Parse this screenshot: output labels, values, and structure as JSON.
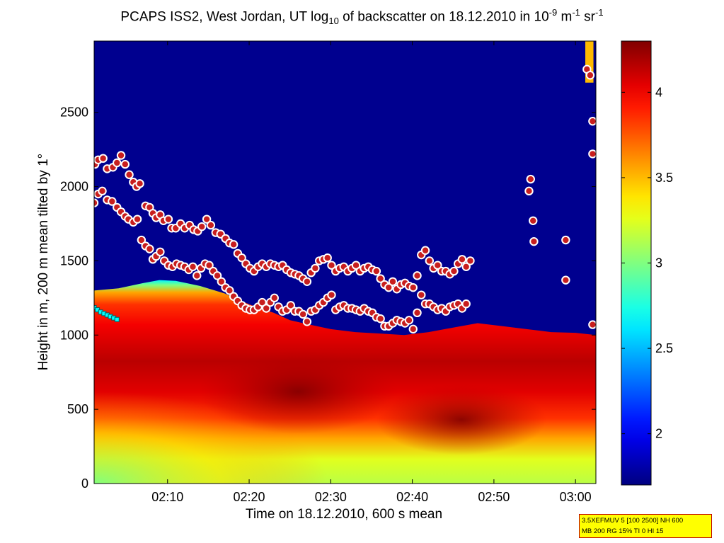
{
  "title": {
    "prefix": "PCAPS ISS2, West Jordan, UT log",
    "sub": "10",
    "middle": " of backscatter on 18.12.2010 in 10",
    "exp1": "-9",
    "unit1": " m",
    "exp2": "-1",
    "unit2": " sr",
    "exp3": "-1"
  },
  "info_box": {
    "line1": "3.5XEFMUV 5 [100 2500] NH 600",
    "line2": "MB 200 RG 15% TI 0 HI 15"
  },
  "colors": {
    "background": "#00008f",
    "marker_fill": "#c81e1e",
    "marker_edge": "#ffffff",
    "cyan_marker": "#00ffff"
  },
  "chart_data": {
    "type": "heatmap",
    "title": "PCAPS ISS2, West Jordan, UT log10 of backscatter on 18.12.2010 in 10-9 m-1 sr-1",
    "xlabel": "Time on 18.12.2010, 600 s mean",
    "ylabel": "Height in m, 200 m mean tilted by 1°",
    "xlim_min": [
      121,
      182.5
    ],
    "ylim": [
      0,
      2980
    ],
    "x_ticks": [
      {
        "v": 130,
        "label": "02:10"
      },
      {
        "v": 140,
        "label": "02:20"
      },
      {
        "v": 150,
        "label": "02:30"
      },
      {
        "v": 160,
        "label": "02:40"
      },
      {
        "v": 170,
        "label": "02:50"
      },
      {
        "v": 180,
        "label": "03:00"
      }
    ],
    "y_ticks": [
      0,
      500,
      1000,
      1500,
      2000,
      2500
    ],
    "colorbar": {
      "lim": [
        1.7,
        4.3
      ],
      "ticks": [
        2,
        2.5,
        3,
        3.5,
        4
      ],
      "colormap": "jet"
    },
    "aerosol_top_m": [
      [
        121,
        1300
      ],
      [
        124,
        1315
      ],
      [
        127,
        1350
      ],
      [
        129,
        1370
      ],
      [
        131,
        1365
      ],
      [
        134,
        1330
      ],
      [
        137,
        1280
      ],
      [
        139,
        1230
      ],
      [
        141,
        1185
      ],
      [
        143,
        1150
      ],
      [
        145,
        1100
      ],
      [
        147,
        1075
      ],
      [
        150,
        1040
      ],
      [
        153,
        1020
      ],
      [
        156,
        1010
      ],
      [
        159,
        1000
      ],
      [
        162,
        1020
      ],
      [
        165,
        1050
      ],
      [
        168,
        1080
      ],
      [
        171,
        1060
      ],
      [
        174,
        1040
      ],
      [
        177,
        1020
      ],
      [
        180,
        1015
      ],
      [
        182.5,
        1000
      ]
    ],
    "layer_series": [
      {
        "points": [
          [
            121.1,
            2150
          ],
          [
            121.5,
            2180
          ],
          [
            122.1,
            2190
          ],
          [
            122.6,
            2120
          ],
          [
            123.3,
            2130
          ],
          [
            123.8,
            2160
          ],
          [
            124.3,
            2210
          ],
          [
            124.8,
            2150
          ],
          [
            125.3,
            2080
          ],
          [
            125.8,
            2030
          ],
          [
            126.2,
            2000
          ],
          [
            126.6,
            2020
          ],
          [
            127.3,
            1870
          ],
          [
            127.8,
            1860
          ],
          [
            128.2,
            1820
          ],
          [
            128.6,
            1790
          ],
          [
            129.1,
            1810
          ],
          [
            129.5,
            1770
          ],
          [
            130.1,
            1780
          ],
          [
            130.5,
            1720
          ],
          [
            131,
            1720
          ],
          [
            131.6,
            1750
          ],
          [
            132.1,
            1720
          ],
          [
            132.7,
            1740
          ],
          [
            133.2,
            1710
          ],
          [
            133.7,
            1700
          ],
          [
            134.2,
            1730
          ],
          [
            134.8,
            1780
          ],
          [
            135.3,
            1740
          ],
          [
            135.9,
            1690
          ],
          [
            136.5,
            1680
          ],
          [
            137.1,
            1650
          ],
          [
            137.6,
            1620
          ],
          [
            138.1,
            1610
          ],
          [
            138.6,
            1550
          ],
          [
            139.1,
            1520
          ],
          [
            139.6,
            1480
          ],
          [
            140.1,
            1450
          ],
          [
            140.6,
            1430
          ],
          [
            141.1,
            1460
          ],
          [
            141.6,
            1480
          ],
          [
            142.1,
            1460
          ],
          [
            142.6,
            1480
          ],
          [
            143.1,
            1470
          ],
          [
            143.6,
            1460
          ],
          [
            144.1,
            1470
          ],
          [
            144.6,
            1440
          ],
          [
            145.1,
            1420
          ],
          [
            145.6,
            1410
          ],
          [
            146.1,
            1400
          ],
          [
            146.6,
            1380
          ],
          [
            147.1,
            1360
          ],
          [
            147.6,
            1420
          ],
          [
            148.1,
            1450
          ],
          [
            148.6,
            1500
          ],
          [
            149.1,
            1510
          ],
          [
            149.6,
            1520
          ],
          [
            150.1,
            1470
          ],
          [
            150.6,
            1430
          ],
          [
            151.1,
            1450
          ],
          [
            151.6,
            1460
          ],
          [
            152.1,
            1430
          ],
          [
            152.6,
            1450
          ],
          [
            153.1,
            1470
          ],
          [
            153.6,
            1430
          ],
          [
            154.1,
            1450
          ],
          [
            154.6,
            1460
          ],
          [
            155.1,
            1440
          ],
          [
            155.6,
            1430
          ],
          [
            156.1,
            1380
          ],
          [
            156.6,
            1340
          ],
          [
            157.1,
            1320
          ],
          [
            157.6,
            1360
          ],
          [
            158.1,
            1310
          ],
          [
            158.6,
            1340
          ],
          [
            159.1,
            1350
          ],
          [
            159.6,
            1330
          ],
          [
            160.1,
            1320
          ],
          [
            160.6,
            1400
          ],
          [
            161.1,
            1540
          ],
          [
            161.6,
            1570
          ],
          [
            162.1,
            1500
          ],
          [
            162.6,
            1450
          ],
          [
            163.1,
            1470
          ],
          [
            163.6,
            1430
          ],
          [
            164.1,
            1430
          ],
          [
            164.6,
            1410
          ],
          [
            165.1,
            1430
          ],
          [
            165.6,
            1480
          ],
          [
            166.1,
            1510
          ],
          [
            166.6,
            1460
          ],
          [
            167.1,
            1500
          ]
        ]
      },
      {
        "points": [
          [
            121,
            1890
          ],
          [
            121.5,
            1950
          ],
          [
            122,
            1970
          ],
          [
            122.6,
            1910
          ],
          [
            123.2,
            1900
          ],
          [
            123.8,
            1860
          ],
          [
            124.3,
            1830
          ],
          [
            124.8,
            1800
          ],
          [
            125.2,
            1780
          ],
          [
            125.8,
            1760
          ],
          [
            126.3,
            1780
          ],
          [
            126.8,
            1640
          ],
          [
            127.3,
            1600
          ],
          [
            127.8,
            1580
          ],
          [
            128.2,
            1510
          ],
          [
            128.6,
            1530
          ],
          [
            129.1,
            1560
          ],
          [
            129.6,
            1500
          ],
          [
            130.1,
            1470
          ],
          [
            130.6,
            1460
          ],
          [
            131.1,
            1480
          ],
          [
            131.6,
            1470
          ],
          [
            132.1,
            1460
          ],
          [
            132.6,
            1440
          ],
          [
            133.1,
            1460
          ],
          [
            133.6,
            1400
          ],
          [
            134.1,
            1450
          ],
          [
            134.6,
            1480
          ],
          [
            135.1,
            1470
          ],
          [
            135.6,
            1430
          ],
          [
            136.1,
            1400
          ],
          [
            136.6,
            1360
          ],
          [
            137.1,
            1320
          ],
          [
            137.6,
            1300
          ],
          [
            138.1,
            1260
          ],
          [
            138.6,
            1230
          ],
          [
            139.1,
            1200
          ],
          [
            139.6,
            1180
          ],
          [
            140.1,
            1170
          ],
          [
            140.6,
            1170
          ],
          [
            141.1,
            1190
          ],
          [
            141.6,
            1220
          ],
          [
            142.1,
            1180
          ],
          [
            142.6,
            1220
          ],
          [
            143.1,
            1250
          ],
          [
            143.6,
            1190
          ],
          [
            144.1,
            1160
          ],
          [
            144.6,
            1170
          ],
          [
            145.1,
            1200
          ],
          [
            145.6,
            1160
          ],
          [
            146.1,
            1160
          ],
          [
            146.6,
            1140
          ],
          [
            147.1,
            1090
          ],
          [
            147.6,
            1160
          ],
          [
            148.1,
            1170
          ],
          [
            148.6,
            1200
          ],
          [
            149.1,
            1220
          ],
          [
            149.6,
            1250
          ],
          [
            150.1,
            1270
          ],
          [
            150.6,
            1170
          ],
          [
            151.1,
            1190
          ],
          [
            151.6,
            1200
          ],
          [
            152.1,
            1180
          ],
          [
            152.6,
            1180
          ],
          [
            153.1,
            1170
          ],
          [
            153.6,
            1160
          ],
          [
            154.1,
            1180
          ],
          [
            154.6,
            1160
          ],
          [
            155.1,
            1150
          ],
          [
            155.6,
            1120
          ],
          [
            156.1,
            1110
          ],
          [
            156.6,
            1060
          ],
          [
            157.1,
            1060
          ],
          [
            157.6,
            1080
          ],
          [
            158.1,
            1100
          ],
          [
            158.6,
            1090
          ],
          [
            159.1,
            1080
          ],
          [
            159.6,
            1100
          ],
          [
            160.1,
            1040
          ],
          [
            160.6,
            1150
          ],
          [
            161.1,
            1270
          ],
          [
            161.6,
            1210
          ],
          [
            162.1,
            1210
          ],
          [
            162.6,
            1190
          ],
          [
            163.1,
            1170
          ],
          [
            163.6,
            1180
          ],
          [
            164.1,
            1160
          ],
          [
            164.6,
            1190
          ],
          [
            165.1,
            1200
          ],
          [
            165.6,
            1210
          ],
          [
            166.1,
            1180
          ],
          [
            166.6,
            1210
          ]
        ]
      },
      {
        "points": [
          [
            174.3,
            1970
          ],
          [
            174.5,
            2050
          ],
          [
            174.8,
            1770
          ],
          [
            174.9,
            1630
          ],
          [
            178.8,
            1640
          ],
          [
            178.8,
            1370
          ],
          [
            181.4,
            2790
          ],
          [
            181.8,
            2750
          ],
          [
            182.1,
            2440
          ],
          [
            182.1,
            2220
          ],
          [
            182.1,
            1070
          ]
        ]
      }
    ],
    "cyan_series": [
      [
        121,
        1185
      ],
      [
        121.4,
        1170
      ],
      [
        121.8,
        1155
      ],
      [
        122.2,
        1145
      ],
      [
        122.6,
        1135
      ],
      [
        123,
        1125
      ],
      [
        123.4,
        1115
      ],
      [
        123.8,
        1105
      ]
    ]
  }
}
